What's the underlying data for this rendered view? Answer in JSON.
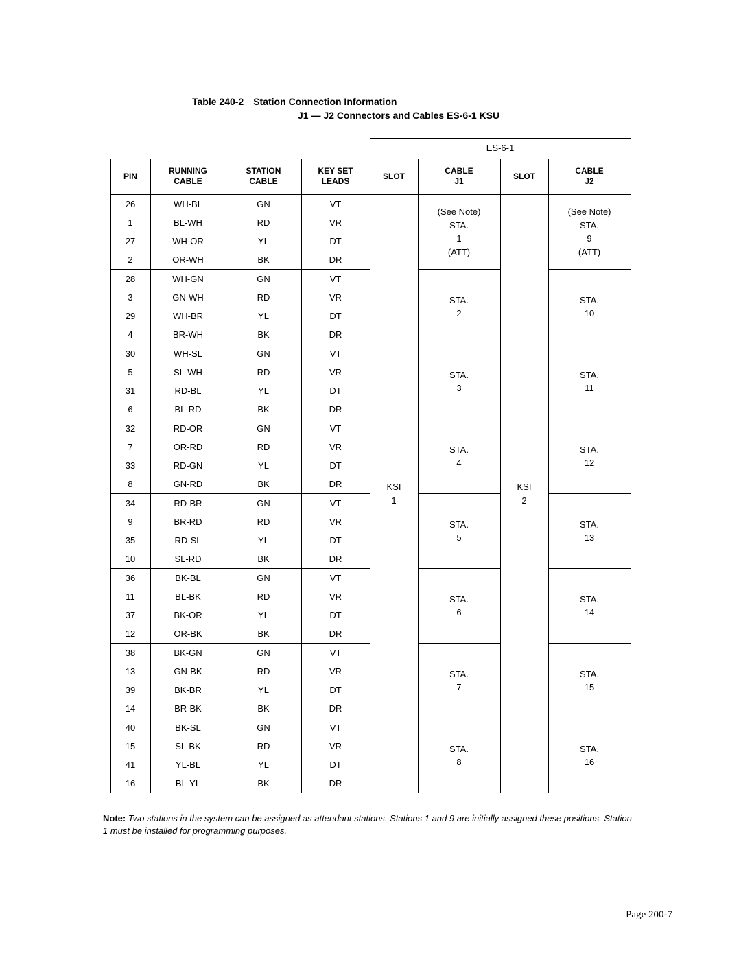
{
  "title": {
    "main": "Table 240-2 Station Connection Information",
    "sub": "J1 — J2 Connectors and Cables ES-6-1 KSU"
  },
  "es_header": "ES-6-1",
  "columns": {
    "pin": "PIN",
    "running": "RUNNING\nCABLE",
    "station": "STATION\nCABLE",
    "keyset": "KEY SET\nLEADS",
    "slot1": "SLOT",
    "cablej1": "CABLE\nJ1",
    "slot2": "SLOT",
    "cablej2": "CABLE\nJ2"
  },
  "slot_j1": "KSI\n1",
  "slot_j2": "KSI\n2",
  "groups": [
    {
      "rows": [
        {
          "pin": "26",
          "run": "WH-BL",
          "sta": "GN",
          "key": "VT"
        },
        {
          "pin": "1",
          "run": "BL-WH",
          "sta": "RD",
          "key": "VR"
        },
        {
          "pin": "27",
          "run": "WH-OR",
          "sta": "YL",
          "key": "DT"
        },
        {
          "pin": "2",
          "run": "OR-WH",
          "sta": "BK",
          "key": "DR"
        }
      ],
      "j1": "(See Note)\nSTA.\n1\n(ATT)",
      "j2": "(See Note)\nSTA.\n9\n(ATT)"
    },
    {
      "rows": [
        {
          "pin": "28",
          "run": "WH-GN",
          "sta": "GN",
          "key": "VT"
        },
        {
          "pin": "3",
          "run": "GN-WH",
          "sta": "RD",
          "key": "VR"
        },
        {
          "pin": "29",
          "run": "WH-BR",
          "sta": "YL",
          "key": "DT"
        },
        {
          "pin": "4",
          "run": "BR-WH",
          "sta": "BK",
          "key": "DR"
        }
      ],
      "j1": "\nSTA.\n2\n",
      "j2": "\nSTA.\n10\n"
    },
    {
      "rows": [
        {
          "pin": "30",
          "run": "WH-SL",
          "sta": "GN",
          "key": "VT"
        },
        {
          "pin": "5",
          "run": "SL-WH",
          "sta": "RD",
          "key": "VR"
        },
        {
          "pin": "31",
          "run": "RD-BL",
          "sta": "YL",
          "key": "DT"
        },
        {
          "pin": "6",
          "run": "BL-RD",
          "sta": "BK",
          "key": "DR"
        }
      ],
      "j1": "\nSTA.\n3\n",
      "j2": "\nSTA.\n11\n"
    },
    {
      "rows": [
        {
          "pin": "32",
          "run": "RD-OR",
          "sta": "GN",
          "key": "VT"
        },
        {
          "pin": "7",
          "run": "OR-RD",
          "sta": "RD",
          "key": "VR"
        },
        {
          "pin": "33",
          "run": "RD-GN",
          "sta": "YL",
          "key": "DT"
        },
        {
          "pin": "8",
          "run": "GN-RD",
          "sta": "BK",
          "key": "DR"
        }
      ],
      "j1": "\nSTA.\n4\n",
      "j2": "\nSTA.\n12\n"
    },
    {
      "rows": [
        {
          "pin": "34",
          "run": "RD-BR",
          "sta": "GN",
          "key": "VT"
        },
        {
          "pin": "9",
          "run": "BR-RD",
          "sta": "RD",
          "key": "VR"
        },
        {
          "pin": "35",
          "run": "RD-SL",
          "sta": "YL",
          "key": "DT"
        },
        {
          "pin": "10",
          "run": "SL-RD",
          "sta": "BK",
          "key": "DR"
        }
      ],
      "j1": "\nSTA.\n5\n",
      "j2": "\nSTA.\n13\n"
    },
    {
      "rows": [
        {
          "pin": "36",
          "run": "BK-BL",
          "sta": "GN",
          "key": "VT"
        },
        {
          "pin": "11",
          "run": "BL-BK",
          "sta": "RD",
          "key": "VR"
        },
        {
          "pin": "37",
          "run": "BK-OR",
          "sta": "YL",
          "key": "DT"
        },
        {
          "pin": "12",
          "run": "OR-BK",
          "sta": "BK",
          "key": "DR"
        }
      ],
      "j1": "\nSTA.\n6\n",
      "j2": "\nSTA.\n14\n"
    },
    {
      "rows": [
        {
          "pin": "38",
          "run": "BK-GN",
          "sta": "GN",
          "key": "VT"
        },
        {
          "pin": "13",
          "run": "GN-BK",
          "sta": "RD",
          "key": "VR"
        },
        {
          "pin": "39",
          "run": "BK-BR",
          "sta": "YL",
          "key": "DT"
        },
        {
          "pin": "14",
          "run": "BR-BK",
          "sta": "BK",
          "key": "DR"
        }
      ],
      "j1": "\nSTA.\n7\n",
      "j2": "\nSTA.\n15\n"
    },
    {
      "rows": [
        {
          "pin": "40",
          "run": "BK-SL",
          "sta": "GN",
          "key": "VT"
        },
        {
          "pin": "15",
          "run": "SL-BK",
          "sta": "RD",
          "key": "VR"
        },
        {
          "pin": "41",
          "run": "YL-BL",
          "sta": "YL",
          "key": "DT"
        },
        {
          "pin": "16",
          "run": "BL-YL",
          "sta": "BK",
          "key": "DR"
        }
      ],
      "j1": "\nSTA.\n8\n",
      "j2": "\nSTA.\n16\n"
    }
  ],
  "note": {
    "label": "Note:",
    "text": "Two stations in the system can be assigned as attendant stations. Stations 1 and 9 are initially assigned these positions. Station 1 must be installed for programming purposes."
  },
  "page": "Page 200-7"
}
